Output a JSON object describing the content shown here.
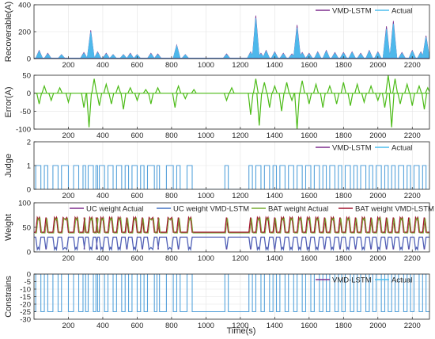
{
  "figure": {
    "xlabel": "Time(s)",
    "colors": {
      "vmd_lstm": "#7E2F8E",
      "actual": "#4DBEEE",
      "uc_weight_actual": "#7E2F8E",
      "uc_weight_vmd": "#4472C4",
      "bat_weight_actual": "#77AC30",
      "bat_weight_vmd": "#A2142F",
      "error": "#4CBB17",
      "recoverable_fill": "#4472C4"
    }
  },
  "chart_data": [
    {
      "type": "line",
      "ylabel": "Recoverable(A)",
      "xlim": [
        0,
        2300
      ],
      "ylim": [
        0,
        400
      ],
      "xticks": [
        200,
        400,
        600,
        800,
        1000,
        1200,
        1400,
        1600,
        1800,
        2000,
        2200
      ],
      "yticks": [
        0,
        200,
        400
      ],
      "legend": {
        "placement": "top-right",
        "entries": [
          "VMD-LSTM",
          "Actual"
        ]
      },
      "series": [
        {
          "name": "VMD-LSTM",
          "peaks": [
            [
              30,
              60
            ],
            [
              80,
              40
            ],
            [
              160,
              30
            ],
            [
              290,
              45
            ],
            [
              330,
              210
            ],
            [
              370,
              50
            ],
            [
              420,
              40
            ],
            [
              460,
              30
            ],
            [
              520,
              30
            ],
            [
              560,
              40
            ],
            [
              600,
              30
            ],
            [
              680,
              40
            ],
            [
              720,
              35
            ],
            [
              830,
              100
            ],
            [
              880,
              30
            ],
            [
              1120,
              35
            ],
            [
              1260,
              50
            ],
            [
              1290,
              320
            ],
            [
              1320,
              40
            ],
            [
              1350,
              60
            ],
            [
              1400,
              50
            ],
            [
              1450,
              40
            ],
            [
              1500,
              35
            ],
            [
              1530,
              250
            ],
            [
              1560,
              45
            ],
            [
              1600,
              40
            ],
            [
              1650,
              50
            ],
            [
              1700,
              60
            ],
            [
              1750,
              45
            ],
            [
              1800,
              45
            ],
            [
              1850,
              50
            ],
            [
              1900,
              40
            ],
            [
              1950,
              60
            ],
            [
              2000,
              50
            ],
            [
              2050,
              240
            ],
            [
              2090,
              280
            ],
            [
              2140,
              45
            ],
            [
              2200,
              60
            ],
            [
              2250,
              50
            ],
            [
              2280,
              170
            ]
          ]
        },
        {
          "name": "Actual",
          "peaks": [
            [
              30,
              55
            ],
            [
              80,
              35
            ],
            [
              160,
              28
            ],
            [
              290,
              40
            ],
            [
              330,
              200
            ],
            [
              370,
              45
            ],
            [
              420,
              35
            ],
            [
              460,
              28
            ],
            [
              520,
              28
            ],
            [
              560,
              35
            ],
            [
              600,
              28
            ],
            [
              680,
              35
            ],
            [
              720,
              30
            ],
            [
              830,
              95
            ],
            [
              880,
              28
            ],
            [
              1120,
              30
            ],
            [
              1260,
              45
            ],
            [
              1290,
              300
            ],
            [
              1320,
              35
            ],
            [
              1350,
              55
            ],
            [
              1400,
              45
            ],
            [
              1450,
              35
            ],
            [
              1500,
              30
            ],
            [
              1530,
              230
            ],
            [
              1560,
              40
            ],
            [
              1600,
              35
            ],
            [
              1650,
              45
            ],
            [
              1700,
              55
            ],
            [
              1750,
              40
            ],
            [
              1800,
              40
            ],
            [
              1850,
              45
            ],
            [
              1900,
              35
            ],
            [
              1950,
              55
            ],
            [
              2000,
              45
            ],
            [
              2050,
              220
            ],
            [
              2090,
              260
            ],
            [
              2140,
              40
            ],
            [
              2200,
              55
            ],
            [
              2250,
              45
            ],
            [
              2280,
              160
            ]
          ]
        }
      ]
    },
    {
      "type": "line",
      "ylabel": "Error(A)",
      "xlim": [
        0,
        2300
      ],
      "ylim": [
        -100,
        50
      ],
      "xticks": [
        200,
        400,
        600,
        800,
        1000,
        1200,
        1400,
        1600,
        1800,
        2000,
        2200
      ],
      "yticks": [
        -100,
        -50,
        0,
        50
      ],
      "series": [
        {
          "spikes": [
            [
              30,
              -30
            ],
            [
              60,
              20
            ],
            [
              100,
              -20
            ],
            [
              150,
              15
            ],
            [
              200,
              -25
            ],
            [
              290,
              -40
            ],
            [
              320,
              -95
            ],
            [
              350,
              40
            ],
            [
              380,
              -35
            ],
            [
              420,
              25
            ],
            [
              450,
              -30
            ],
            [
              490,
              20
            ],
            [
              520,
              -45
            ],
            [
              560,
              15
            ],
            [
              600,
              -20
            ],
            [
              650,
              10
            ],
            [
              680,
              -30
            ],
            [
              720,
              15
            ],
            [
              820,
              -40
            ],
            [
              840,
              20
            ],
            [
              880,
              -15
            ],
            [
              930,
              10
            ],
            [
              1120,
              -20
            ],
            [
              1150,
              15
            ],
            [
              1260,
              -60
            ],
            [
              1290,
              40
            ],
            [
              1310,
              -90
            ],
            [
              1340,
              30
            ],
            [
              1370,
              -40
            ],
            [
              1400,
              20
            ],
            [
              1440,
              -50
            ],
            [
              1470,
              30
            ],
            [
              1500,
              -20
            ],
            [
              1530,
              -100
            ],
            [
              1560,
              35
            ],
            [
              1600,
              -30
            ],
            [
              1640,
              25
            ],
            [
              1680,
              -40
            ],
            [
              1720,
              20
            ],
            [
              1760,
              -30
            ],
            [
              1800,
              30
            ],
            [
              1840,
              -35
            ],
            [
              1880,
              25
            ],
            [
              1920,
              -25
            ],
            [
              1960,
              20
            ],
            [
              2000,
              -20
            ],
            [
              2040,
              -40
            ],
            [
              2060,
              50
            ],
            [
              2080,
              -95
            ],
            [
              2100,
              40
            ],
            [
              2130,
              -30
            ],
            [
              2170,
              25
            ],
            [
              2200,
              -35
            ],
            [
              2240,
              20
            ],
            [
              2270,
              -45
            ],
            [
              2290,
              15
            ]
          ]
        }
      ]
    },
    {
      "type": "step",
      "ylabel": "Judge",
      "xlim": [
        0,
        2300
      ],
      "ylim": [
        0,
        2
      ],
      "xticks": [
        200,
        400,
        600,
        800,
        1000,
        1200,
        1400,
        1600,
        1800,
        2000,
        2200
      ],
      "yticks": [
        0,
        1,
        2
      ],
      "legend": {
        "placement": "top-right",
        "entries": [
          "VMD-LSTM",
          "Actual"
        ]
      },
      "segments_on": [
        [
          10,
          40
        ],
        [
          60,
          80
        ],
        [
          110,
          140
        ],
        [
          160,
          200
        ],
        [
          230,
          260
        ],
        [
          285,
          300
        ],
        [
          315,
          345
        ],
        [
          360,
          370
        ],
        [
          380,
          410
        ],
        [
          430,
          460
        ],
        [
          480,
          510
        ],
        [
          530,
          550
        ],
        [
          570,
          600
        ],
        [
          620,
          640
        ],
        [
          660,
          700
        ],
        [
          715,
          730
        ],
        [
          770,
          810
        ],
        [
          830,
          850
        ],
        [
          890,
          920
        ],
        [
          1110,
          1130
        ],
        [
          1250,
          1270
        ],
        [
          1290,
          1320
        ],
        [
          1340,
          1370
        ],
        [
          1390,
          1410
        ],
        [
          1430,
          1460
        ],
        [
          1480,
          1510
        ],
        [
          1530,
          1560
        ],
        [
          1580,
          1610
        ],
        [
          1630,
          1660
        ],
        [
          1680,
          1700
        ],
        [
          1720,
          1750
        ],
        [
          1770,
          1790
        ],
        [
          1810,
          1840
        ],
        [
          1860,
          1880
        ],
        [
          1900,
          1930
        ],
        [
          1950,
          1970
        ],
        [
          1990,
          2020
        ],
        [
          2040,
          2060
        ],
        [
          2080,
          2100
        ],
        [
          2120,
          2150
        ],
        [
          2170,
          2190
        ],
        [
          2210,
          2240
        ],
        [
          2260,
          2280
        ]
      ]
    },
    {
      "type": "line",
      "ylabel": "Weight",
      "xlim": [
        0,
        2300
      ],
      "ylim": [
        0,
        100
      ],
      "xticks": [
        200,
        400,
        600,
        800,
        1000,
        1200,
        1400,
        1600,
        1800,
        2000,
        2200
      ],
      "yticks": [
        0,
        50,
        100
      ],
      "legend": {
        "placement": "top",
        "entries": [
          "UC weight Actual",
          "UC weight VMD-LSTM",
          "BAT weight Actual",
          "BAT weight VMD-LSTM"
        ]
      },
      "bat_base": 40,
      "bat_high": 70,
      "uc_base": 30,
      "uc_low": 5
    },
    {
      "type": "step",
      "ylabel": "Constrains",
      "xlim": [
        0,
        2300
      ],
      "ylim": [
        -30,
        0
      ],
      "xticks": [
        200,
        400,
        600,
        800,
        1000,
        1200,
        1400,
        1600,
        1800,
        2000,
        2200
      ],
      "yticks": [
        -30,
        -25,
        -20,
        -15,
        -10,
        -5,
        0
      ],
      "legend": {
        "placement": "top-right",
        "entries": [
          "VMD-LSTM",
          "Actual"
        ]
      },
      "low": -25,
      "high": 0
    }
  ]
}
